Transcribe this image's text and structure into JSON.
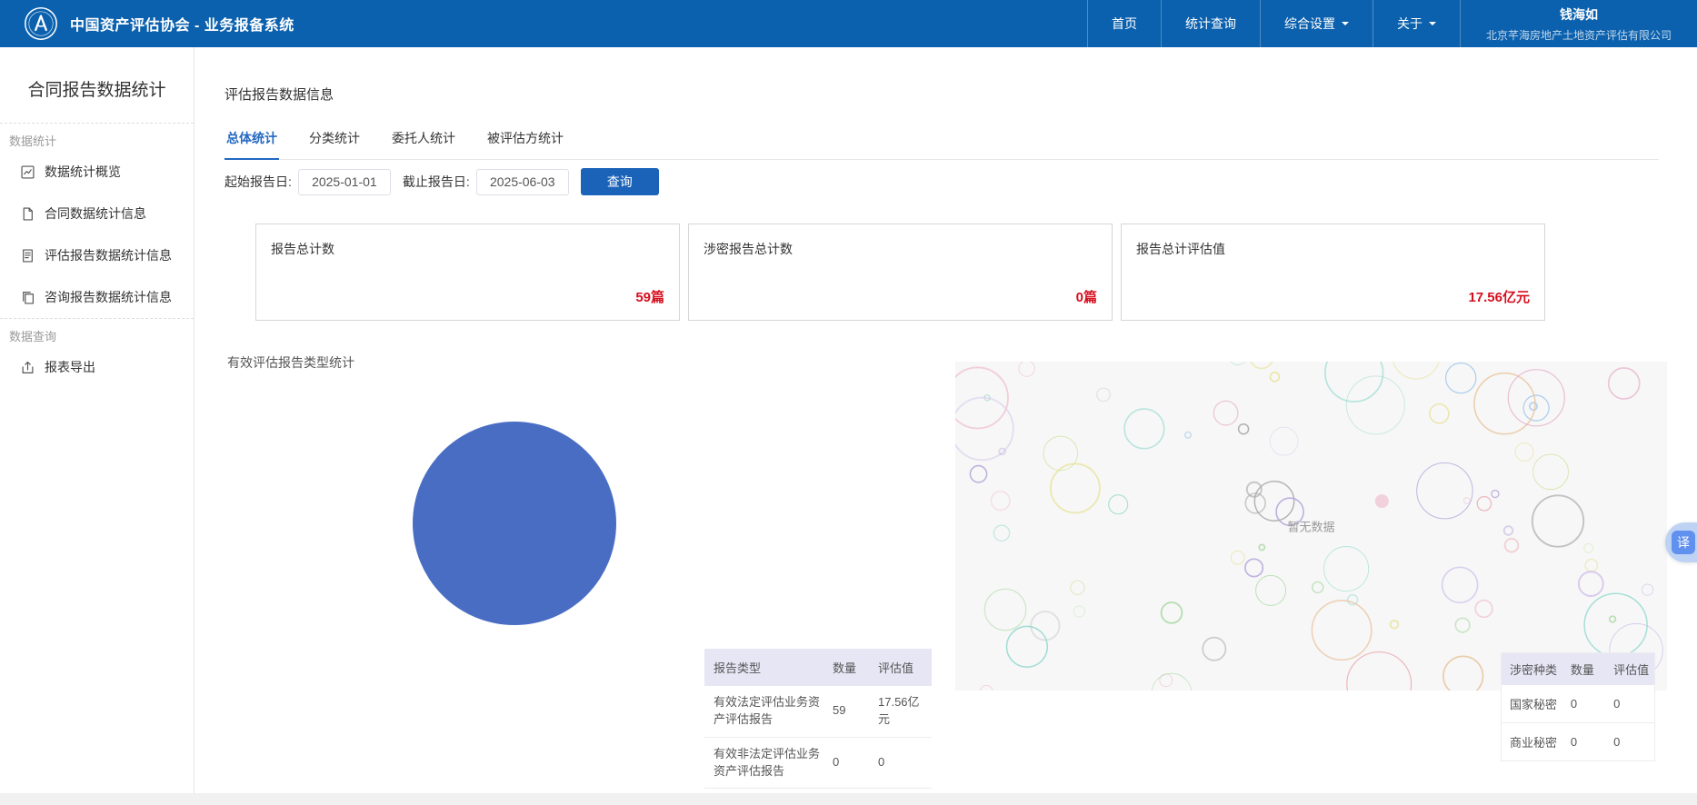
{
  "header": {
    "app_title": "中国资产评估协会 - 业务报备系统",
    "nav_items": [
      {
        "label": "首页",
        "dropdown": false
      },
      {
        "label": "统计查询",
        "dropdown": false
      },
      {
        "label": "综合设置",
        "dropdown": true
      },
      {
        "label": "关于",
        "dropdown": true
      }
    ],
    "user": {
      "name": "钱海如",
      "company": "北京芊海房地产土地资产评估有限公司"
    }
  },
  "sidebar": {
    "title": "合同报告数据统计",
    "section1_label": "数据统计",
    "section2_label": "数据查询",
    "items": [
      {
        "label": "数据统计概览"
      },
      {
        "label": "合同数据统计信息"
      },
      {
        "label": "评估报告数据统计信息"
      },
      {
        "label": "咨询报告数据统计信息"
      },
      {
        "label": "报表导出"
      }
    ]
  },
  "main": {
    "page_title": "评估报告数据信息",
    "tabs": [
      {
        "label": "总体统计",
        "active": true
      },
      {
        "label": "分类统计",
        "active": false
      },
      {
        "label": "委托人统计",
        "active": false
      },
      {
        "label": "被评估方统计",
        "active": false
      }
    ],
    "filters": {
      "start_label": "起始报告日:",
      "start_value": "2025-01-01",
      "end_label": "截止报告日:",
      "end_value": "2025-06-03",
      "search_button": "查询"
    },
    "stat_cards": [
      {
        "title": "报告总计数",
        "value": "59篇"
      },
      {
        "title": "涉密报告总计数",
        "value": "0篇"
      },
      {
        "title": "报告总计评估值",
        "value": "17.56亿元"
      }
    ],
    "section_title": "有效评估报告类型统计",
    "empty_text": "暂无数据",
    "type_table": {
      "headers": [
        "报告类型",
        "数量",
        "评估值"
      ],
      "rows": [
        [
          "有效法定评估业务资产评估报告",
          "59",
          "17.56亿元"
        ],
        [
          "有效非法定评估业务资产评估报告",
          "0",
          "0"
        ]
      ]
    },
    "secret_table": {
      "headers": [
        "涉密种类",
        "数量",
        "评估值"
      ],
      "rows": [
        [
          "国家秘密",
          "0",
          "0"
        ],
        [
          "商业秘密",
          "0",
          "0"
        ]
      ]
    }
  },
  "float_button": {
    "label": "译"
  },
  "colors": {
    "header_bg": "#0b61ae",
    "primary_button": "#1b63b9",
    "active_tab": "#2468c2",
    "value_red": "#d50f1f",
    "pie_blue": "#4a6dc4",
    "table_header_bg": "#e7e6f5"
  },
  "chart_data": [
    {
      "type": "pie",
      "title": "有效评估报告类型统计",
      "categories": [
        "有效法定评估业务资产评估报告",
        "有效非法定评估业务资产评估报告"
      ],
      "values": [
        59,
        0
      ],
      "value_labels": [
        "17.56亿元",
        "0"
      ],
      "colors": [
        "#4a6dc4"
      ],
      "legend_position": "none",
      "note": "single full slice, no labels shown"
    },
    {
      "type": "scatter",
      "title": "涉密报告统计",
      "categories": [
        "国家秘密",
        "商业秘密"
      ],
      "series": [
        {
          "name": "数量",
          "values": [
            0,
            0
          ]
        },
        {
          "name": "评估值",
          "values": [
            0,
            0
          ]
        }
      ],
      "empty_text": "暂无数据",
      "note": "empty bubble chart placeholder with decorative circles"
    }
  ]
}
